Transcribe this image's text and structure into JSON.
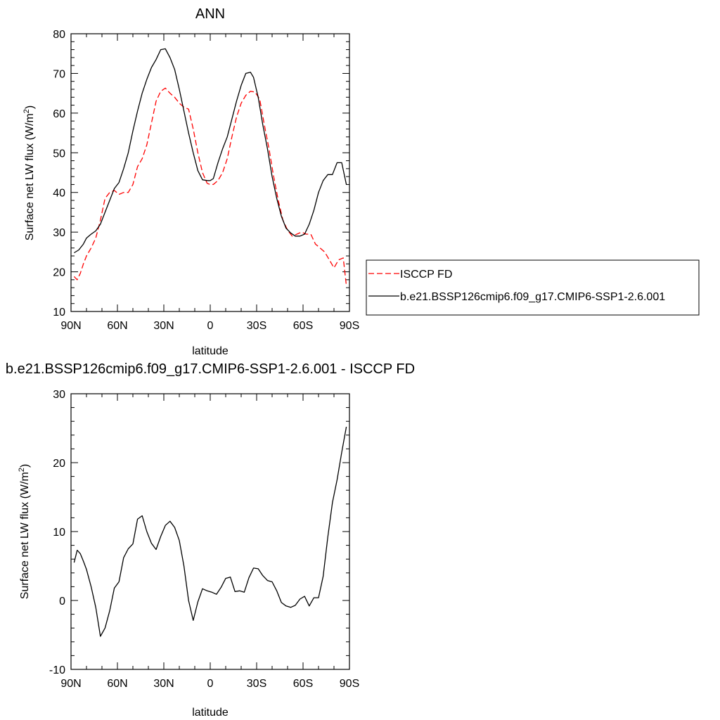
{
  "chart_data": [
    {
      "type": "line",
      "title": "ANN",
      "xlabel": "latitude",
      "ylabel": "Surface net LW flux (W/m",
      "ylabel_sup": "2",
      "ylabel_end": ")",
      "xlim": [
        90,
        -90
      ],
      "ylim": [
        10,
        80
      ],
      "xticks": [
        90,
        60,
        30,
        0,
        -30,
        -60,
        -90
      ],
      "xticklabels": [
        "90N",
        "60N",
        "30N",
        "0",
        "30S",
        "60S",
        "90S"
      ],
      "yticks": [
        10,
        20,
        30,
        40,
        50,
        60,
        70,
        80
      ],
      "yticklabels": [
        "10",
        "20",
        "30",
        "40",
        "50",
        "60",
        "70",
        "80"
      ],
      "grid": false,
      "legend_position": "right",
      "series": [
        {
          "name": "ISCCP FD",
          "color": "#ff0000",
          "dash": "dashed",
          "x": [
            88,
            86,
            84,
            82,
            80,
            77,
            74,
            71,
            68,
            65,
            62,
            59,
            56,
            53,
            50,
            47,
            44,
            41,
            38,
            35,
            32,
            29,
            26,
            23,
            20,
            17,
            14,
            11,
            8,
            5,
            2,
            0,
            -2,
            -5,
            -8,
            -11,
            -14,
            -17,
            -20,
            -23,
            -26,
            -29,
            -32,
            -35,
            -38,
            -41,
            -44,
            -47,
            -50,
            -53,
            -56,
            -59,
            -62,
            -65,
            -68,
            -71,
            -74,
            -77,
            -80,
            -83,
            -86,
            -88
          ],
          "y": [
            18.8,
            18.0,
            19.6,
            22.0,
            24.0,
            26.0,
            28.5,
            33.0,
            38.5,
            40.0,
            40.5,
            39.5,
            40.0,
            40.0,
            42.0,
            46.5,
            48.5,
            52.0,
            57.5,
            63.0,
            65.5,
            66.3,
            65.0,
            64.0,
            62.5,
            61.5,
            61.0,
            56.0,
            50.0,
            45.0,
            42.3,
            42.0,
            42.0,
            43.0,
            45.0,
            48.5,
            54.0,
            59.0,
            62.5,
            64.5,
            65.5,
            65.3,
            63.5,
            57.0,
            51.0,
            44.0,
            38.0,
            33.0,
            30.5,
            29.0,
            29.5,
            30.0,
            29.5,
            29.5,
            27.0,
            26.0,
            25.0,
            23.0,
            21.0,
            23.0,
            23.5,
            16.5
          ]
        },
        {
          "name": "b.e21.BSSP126cmip6.f09_g17.CMIP6-SSP1-2.6.001",
          "color": "#000000",
          "dash": "solid",
          "x": [
            88,
            85,
            82,
            80,
            77,
            74,
            71,
            68,
            65,
            62,
            59,
            56,
            53,
            50,
            47,
            44,
            41,
            38,
            35,
            32,
            29,
            26,
            23,
            20,
            17,
            14,
            11,
            8,
            5,
            2,
            0,
            -2,
            -5,
            -8,
            -11,
            -14,
            -17,
            -20,
            -23,
            -26,
            -28,
            -31,
            -34,
            -37,
            -40,
            -43,
            -46,
            -49,
            -52,
            -55,
            -58,
            -61,
            -64,
            -67,
            -70,
            -73,
            -76,
            -79,
            -82,
            -85,
            -88
          ],
          "y": [
            24.8,
            25.5,
            27.0,
            28.5,
            29.5,
            30.3,
            32.0,
            35.0,
            38.0,
            41.0,
            42.5,
            46.0,
            50.0,
            55.5,
            60.5,
            65.0,
            68.5,
            71.5,
            73.5,
            76.0,
            76.2,
            74.0,
            71.0,
            66.0,
            60.5,
            55.0,
            50.0,
            45.5,
            43.2,
            43.0,
            43.0,
            43.5,
            47.5,
            51.0,
            54.0,
            58.5,
            63.0,
            67.0,
            70.0,
            70.3,
            69.0,
            64.0,
            57.0,
            51.0,
            44.0,
            38.5,
            34.0,
            31.0,
            29.8,
            29.0,
            29.0,
            29.5,
            32.0,
            35.5,
            40.0,
            43.0,
            44.5,
            44.5,
            47.5,
            47.5,
            42.0
          ]
        }
      ]
    },
    {
      "type": "line",
      "title": "b.e21.BSSP126cmip6.f09_g17.CMIP6-SSP1-2.6.001 - ISCCP FD",
      "xlabel": "latitude",
      "ylabel": "Surface net LW flux (W/m",
      "ylabel_sup": "2",
      "ylabel_end": ")",
      "xlim": [
        90,
        -90
      ],
      "ylim": [
        -10,
        30
      ],
      "xticks": [
        90,
        60,
        30,
        0,
        -30,
        -60,
        -90
      ],
      "xticklabels": [
        "90N",
        "60N",
        "30N",
        "0",
        "30S",
        "60S",
        "90S"
      ],
      "yticks": [
        -10,
        0,
        10,
        20,
        30
      ],
      "yticklabels": [
        "-10",
        "0",
        "10",
        "20",
        "30"
      ],
      "grid": false,
      "series": [
        {
          "color": "#000000",
          "dash": "solid",
          "x": [
            88,
            86,
            84,
            82,
            80,
            77,
            74,
            71,
            68,
            65,
            62,
            59,
            56,
            53,
            50,
            47,
            44,
            41,
            38,
            35,
            32,
            29,
            26,
            23,
            20,
            17,
            14,
            11,
            8,
            5,
            2,
            -1,
            -4,
            -7,
            -10,
            -13,
            -16,
            -19,
            -22,
            -25,
            -28,
            -31,
            -34,
            -37,
            -40,
            -43,
            -46,
            -49,
            -52,
            -55,
            -58,
            -61,
            -64,
            -67,
            -70,
            -73,
            -76,
            -79,
            -82,
            -85,
            -88
          ],
          "y": [
            5.5,
            7.3,
            6.8,
            5.7,
            4.5,
            2.0,
            -1.0,
            -5.2,
            -4.0,
            -1.5,
            1.8,
            2.7,
            6.2,
            7.5,
            8.2,
            11.8,
            12.3,
            10.0,
            8.3,
            7.4,
            9.3,
            10.9,
            11.5,
            10.6,
            8.7,
            5.0,
            0.0,
            -2.9,
            -0.2,
            1.7,
            1.4,
            1.2,
            0.9,
            1.9,
            3.2,
            3.4,
            1.3,
            1.4,
            1.2,
            3.3,
            4.7,
            4.6,
            3.6,
            2.9,
            2.7,
            1.4,
            -0.3,
            -0.8,
            -1.0,
            -0.7,
            0.2,
            0.6,
            -0.8,
            0.4,
            0.4,
            3.5,
            9.2,
            14.2,
            17.5,
            21.5,
            25.2
          ]
        }
      ]
    }
  ]
}
